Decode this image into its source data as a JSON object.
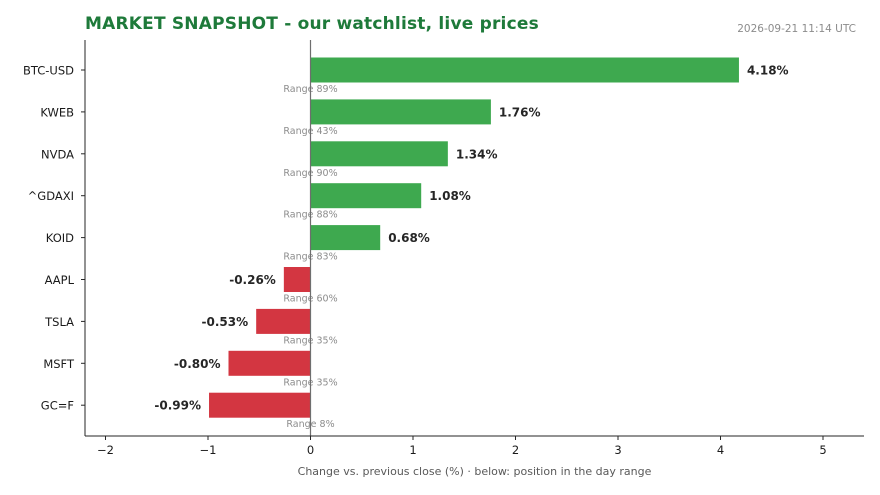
{
  "header": {
    "title": "MARKET SNAPSHOT - our watchlist, live prices",
    "timestamp": "2026-09-21 11:14 UTC"
  },
  "colors": {
    "positive": "#3ea94f",
    "negative": "#d33641",
    "title": "#1e7a3a",
    "range_label": "#8c8c8c"
  },
  "chart_data": {
    "type": "bar",
    "orientation": "horizontal",
    "xlabel": "Change vs. previous close (%)  ·  below: position in the day range",
    "ylabel": "",
    "xlim": [
      -2.2,
      5.4
    ],
    "xticks": [
      -2,
      -1,
      0,
      1,
      2,
      3,
      4,
      5
    ],
    "xtick_labels": [
      "−2",
      "−1",
      "0",
      "1",
      "2",
      "3",
      "4",
      "5"
    ],
    "grid": false,
    "categories": [
      "BTC-USD",
      "KWEB",
      "NVDA",
      "^GDAXI",
      "KOID",
      "AAPL",
      "TSLA",
      "MSFT",
      "GC=F"
    ],
    "values": [
      4.18,
      1.76,
      1.34,
      1.08,
      0.68,
      -0.26,
      -0.53,
      -0.8,
      -0.99
    ],
    "value_labels": [
      "4.18%",
      "1.76%",
      "1.34%",
      "1.08%",
      "0.68%",
      "-0.26%",
      "-0.53%",
      "-0.80%",
      "-0.99%"
    ],
    "range_labels": [
      "Range 89%",
      "Range 43%",
      "Range 90%",
      "Range 88%",
      "Range 83%",
      "Range 60%",
      "Range 35%",
      "Range 35%",
      "Range 8%"
    ]
  }
}
